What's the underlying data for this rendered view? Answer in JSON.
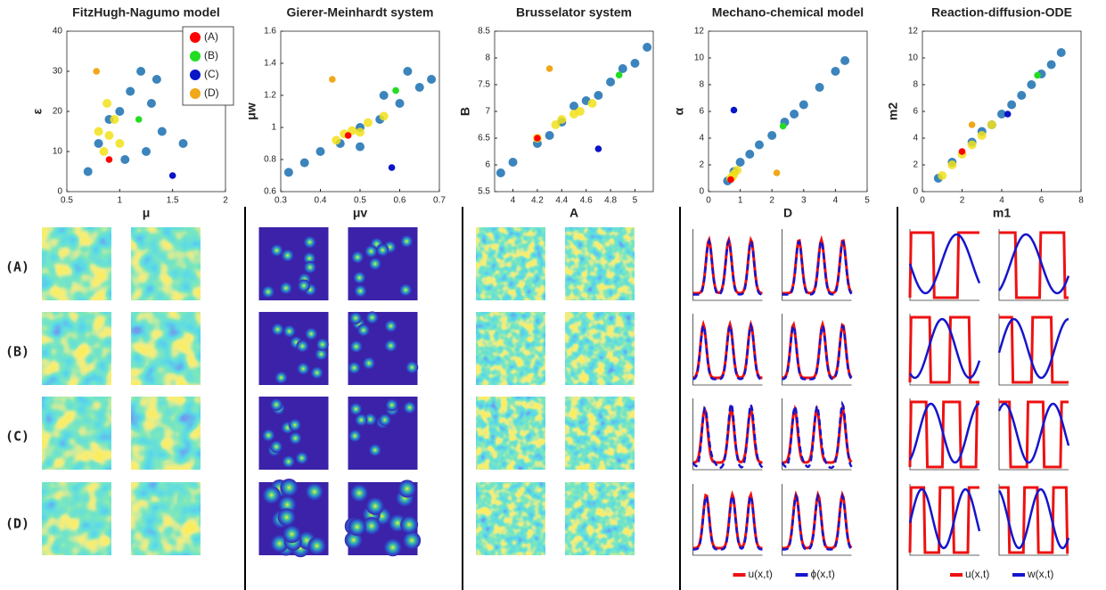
{
  "row_labels": [
    "(A)",
    "(B)",
    "(C)",
    "(D)"
  ],
  "chart_data": [
    {
      "type": "scatter",
      "title": "FitzHugh-Nagumo model",
      "x_label": "μ",
      "y_label": "ε",
      "xlim": [
        0.5,
        2
      ],
      "xticks": [
        0.5,
        1,
        1.5,
        2
      ],
      "ylim": [
        0,
        40
      ],
      "yticks": [
        0,
        10,
        20,
        30,
        40
      ],
      "legend": {
        "position": "upper right",
        "entries": [
          {
            "name": "(A)",
            "color": "#ff0000"
          },
          {
            "name": "(B)",
            "color": "#22dd22"
          },
          {
            "name": "(C)",
            "color": "#0a14c8"
          },
          {
            "name": "(D)",
            "color": "#f0a818"
          }
        ]
      },
      "series": [
        {
          "color": "#1a6fb0",
          "x": [
            0.7,
            0.8,
            1.0,
            1.1,
            1.2,
            1.3,
            1.4,
            1.25,
            1.6,
            1.05,
            0.9,
            1.35
          ],
          "values": [
            5,
            12,
            20,
            25,
            30,
            22,
            15,
            10,
            12,
            8,
            18,
            28
          ]
        },
        {
          "color": "#f2e11a",
          "x": [
            0.85,
            0.9,
            0.95,
            0.8,
            1.0,
            0.88
          ],
          "values": [
            10,
            14,
            18,
            15,
            12,
            22
          ]
        },
        {
          "color": "#ff0000",
          "x": [
            0.9
          ],
          "values": [
            8
          ]
        },
        {
          "color": "#22dd22",
          "x": [
            1.18
          ],
          "values": [
            18
          ]
        },
        {
          "color": "#0a14c8",
          "x": [
            1.5
          ],
          "values": [
            4
          ]
        },
        {
          "color": "#f0a818",
          "x": [
            0.78
          ],
          "values": [
            30
          ]
        }
      ]
    },
    {
      "type": "scatter",
      "title": "Gierer-Meinhardt system",
      "x_label": "μv",
      "y_label": "μw",
      "xlim": [
        0.3,
        0.7
      ],
      "xticks": [
        0.3,
        0.4,
        0.5,
        0.6,
        0.7
      ],
      "ylim": [
        0.6,
        1.6
      ],
      "yticks": [
        0.6,
        0.8,
        1,
        1.2,
        1.4,
        1.6
      ],
      "series": [
        {
          "color": "#1a6fb0",
          "x": [
            0.32,
            0.36,
            0.4,
            0.45,
            0.5,
            0.55,
            0.6,
            0.65,
            0.68,
            0.62,
            0.5,
            0.56
          ],
          "values": [
            0.72,
            0.78,
            0.85,
            0.9,
            1.0,
            1.05,
            1.15,
            1.25,
            1.3,
            1.35,
            0.88,
            1.2
          ]
        },
        {
          "color": "#f2e11a",
          "x": [
            0.44,
            0.48,
            0.52,
            0.56,
            0.5,
            0.46
          ],
          "values": [
            0.92,
            0.98,
            1.03,
            1.07,
            0.97,
            0.96
          ]
        },
        {
          "color": "#ff0000",
          "x": [
            0.47
          ],
          "values": [
            0.95
          ]
        },
        {
          "color": "#22dd22",
          "x": [
            0.59
          ],
          "values": [
            1.23
          ]
        },
        {
          "color": "#0a14c8",
          "x": [
            0.58
          ],
          "values": [
            0.75
          ]
        },
        {
          "color": "#f0a818",
          "x": [
            0.43
          ],
          "values": [
            1.3
          ]
        }
      ]
    },
    {
      "type": "scatter",
      "title": "Brusselator system",
      "x_label": "A",
      "y_label": "B",
      "xlim": [
        3.85,
        5.15
      ],
      "xticks": [
        4,
        4.2,
        4.4,
        4.6,
        4.8,
        5
      ],
      "ylim": [
        5.5,
        8.5
      ],
      "yticks": [
        5.5,
        6,
        6.5,
        7,
        7.5,
        8,
        8.5
      ],
      "series": [
        {
          "color": "#1a6fb0",
          "x": [
            3.9,
            4.0,
            4.2,
            4.4,
            4.6,
            4.8,
            5.0,
            5.1,
            4.5,
            4.7,
            4.3,
            4.9
          ],
          "values": [
            5.85,
            6.05,
            6.4,
            6.8,
            7.2,
            7.55,
            7.9,
            8.2,
            7.1,
            7.3,
            6.55,
            7.8
          ]
        },
        {
          "color": "#f2e11a",
          "x": [
            4.2,
            4.35,
            4.5,
            4.65,
            4.4,
            4.55
          ],
          "values": [
            6.5,
            6.75,
            6.95,
            7.15,
            6.85,
            7.0
          ]
        },
        {
          "color": "#ff0000",
          "x": [
            4.2
          ],
          "values": [
            6.5
          ]
        },
        {
          "color": "#22dd22",
          "x": [
            4.87
          ],
          "values": [
            7.68
          ]
        },
        {
          "color": "#0a14c8",
          "x": [
            4.7
          ],
          "values": [
            6.3
          ]
        },
        {
          "color": "#f0a818",
          "x": [
            4.3
          ],
          "values": [
            7.8
          ]
        }
      ]
    },
    {
      "type": "scatter",
      "title": "Mechano-chemical model",
      "x_label": "D",
      "y_label": "α",
      "xlim": [
        0,
        5
      ],
      "xticks": [
        0,
        1,
        2,
        3,
        4,
        5
      ],
      "ylim": [
        0,
        12
      ],
      "yticks": [
        0,
        2,
        4,
        6,
        8,
        10,
        12
      ],
      "profile_legend": [
        {
          "name": "u(x,t)",
          "color": "#ee1111"
        },
        {
          "name": "ϕ(x,t)",
          "color": "#1515cc"
        }
      ],
      "series": [
        {
          "color": "#1a6fb0",
          "x": [
            0.6,
            0.8,
            1.0,
            1.3,
            1.6,
            2.0,
            2.4,
            2.7,
            3.0,
            3.5,
            4.0,
            4.3
          ],
          "values": [
            0.8,
            1.5,
            2.2,
            2.8,
            3.5,
            4.2,
            5.2,
            5.8,
            6.5,
            7.8,
            9.0,
            9.8
          ]
        },
        {
          "color": "#f2e11a",
          "x": [
            0.7,
            0.8,
            0.9,
            0.75
          ],
          "values": [
            1.0,
            1.3,
            1.6,
            1.1
          ]
        },
        {
          "color": "#ff0000",
          "x": [
            0.7
          ],
          "values": [
            0.9
          ]
        },
        {
          "color": "#22dd22",
          "x": [
            2.35
          ],
          "values": [
            4.9
          ]
        },
        {
          "color": "#0a14c8",
          "x": [
            0.8
          ],
          "values": [
            6.1
          ]
        },
        {
          "color": "#f0a818",
          "x": [
            2.15
          ],
          "values": [
            1.4
          ]
        }
      ]
    },
    {
      "type": "scatter",
      "title": "Reaction-diffusion-ODE",
      "x_label": "m1",
      "y_label": "m2",
      "xlim": [
        0,
        8
      ],
      "xticks": [
        0,
        2,
        4,
        6,
        8
      ],
      "ylim": [
        0,
        12
      ],
      "yticks": [
        0,
        2,
        4,
        6,
        8,
        10,
        12
      ],
      "profile_legend": [
        {
          "name": "u(x,t)",
          "color": "#ee1111"
        },
        {
          "name": "w(x,t)",
          "color": "#1515cc"
        }
      ],
      "series": [
        {
          "color": "#1a6fb0",
          "x": [
            0.8,
            1.5,
            2.5,
            3.5,
            4.5,
            5.5,
            6.5,
            7,
            3,
            4,
            5,
            6
          ],
          "values": [
            1.0,
            2.2,
            3.7,
            5.0,
            6.5,
            8.0,
            9.5,
            10.4,
            4.5,
            5.8,
            7.2,
            8.8
          ]
        },
        {
          "color": "#f2e11a",
          "x": [
            1.0,
            1.5,
            2.0,
            2.5,
            3.0,
            3.5
          ],
          "values": [
            1.2,
            2.0,
            2.8,
            3.5,
            4.2,
            5.0
          ]
        },
        {
          "color": "#ff0000",
          "x": [
            2
          ],
          "values": [
            3
          ]
        },
        {
          "color": "#22dd22",
          "x": [
            5.8
          ],
          "values": [
            8.7
          ]
        },
        {
          "color": "#0a14c8",
          "x": [
            4.3
          ],
          "values": [
            5.8
          ]
        },
        {
          "color": "#f0a818",
          "x": [
            2.5
          ],
          "values": [
            5
          ]
        }
      ]
    }
  ]
}
